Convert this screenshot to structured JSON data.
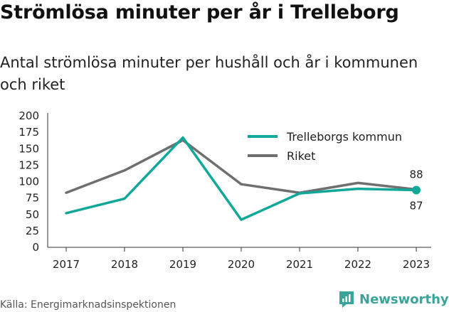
{
  "title": "Strömlösa minuter per år i Trelleborg",
  "subtitle": "Antal strömlösa minuter per hushåll och år i kommunen och riket",
  "source": "Källa: Energimarknadsinspektionen",
  "brand": "Newsworthy",
  "brand_icon": "bar-chart-icon",
  "colors": {
    "trelleborg": "#11a89a",
    "riket": "#6f6f72",
    "brand": "#3aa39a",
    "axis": "#333333"
  },
  "chart_data": {
    "type": "line",
    "x": [
      "2017",
      "2018",
      "2019",
      "2020",
      "2021",
      "2022",
      "2023"
    ],
    "ylim": [
      0,
      200
    ],
    "yticks": [
      0,
      25,
      50,
      75,
      100,
      125,
      150,
      175,
      200
    ],
    "grid": false,
    "legend_position": "top-right",
    "series": [
      {
        "name": "Trelleborgs kommun",
        "values": [
          52,
          74,
          167,
          42,
          82,
          89,
          87
        ]
      },
      {
        "name": "Riket",
        "values": [
          83,
          117,
          163,
          96,
          83,
          98,
          88
        ]
      }
    ],
    "end_labels": {
      "Trelleborgs kommun": "87",
      "Riket": "88"
    }
  }
}
